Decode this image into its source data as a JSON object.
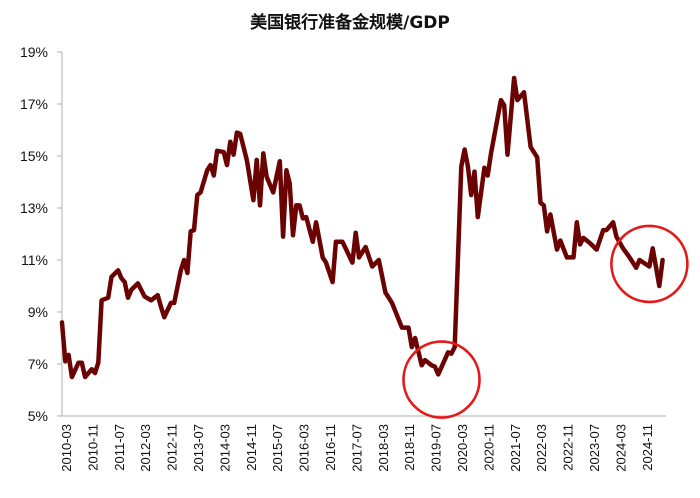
{
  "chart_data": {
    "type": "line",
    "title": "美国银行准备金规模/GDP",
    "xlabel": "",
    "ylabel": "",
    "ylim": [
      5,
      19
    ],
    "y_ticks": [
      "5%",
      "7%",
      "9%",
      "11%",
      "13%",
      "15%",
      "17%",
      "19%"
    ],
    "y_tick_values": [
      5,
      7,
      9,
      11,
      13,
      15,
      17,
      19
    ],
    "x_ticks": [
      "2010-03",
      "2010-11",
      "2011-07",
      "2012-03",
      "2012-11",
      "2013-07",
      "2014-03",
      "2014-11",
      "2015-07",
      "2016-03",
      "2016-11",
      "2017-07",
      "2018-03",
      "2018-11",
      "2019-07",
      "2020-03",
      "2020-11",
      "2021-07",
      "2022-03",
      "2022-11",
      "2023-07",
      "2024-03",
      "2024-11"
    ],
    "grid": false,
    "legend": "none",
    "line_color": "#6b0303",
    "highlight_color": "#e41a1a",
    "highlights": [
      {
        "center_date": "2019-10",
        "center_value": 6.4
      },
      {
        "center_date": "2025-01",
        "center_value": 10.85
      }
    ],
    "series": [
      {
        "x": [
          "2010-03",
          "2010-04",
          "2010-05",
          "2010-06",
          "2010-08",
          "2010-09",
          "2010-10",
          "2010-12",
          "2011-01",
          "2011-02",
          "2011-03",
          "2011-05",
          "2011-06",
          "2011-08",
          "2011-09",
          "2011-10",
          "2011-11",
          "2011-12",
          "2012-02",
          "2012-04",
          "2012-06",
          "2012-08",
          "2012-09",
          "2012-10",
          "2012-12",
          "2013-01",
          "2013-03",
          "2013-04",
          "2013-05",
          "2013-06",
          "2013-07",
          "2013-08",
          "2013-09",
          "2013-11",
          "2013-12",
          "2014-01",
          "2014-02",
          "2014-04",
          "2014-05",
          "2014-06",
          "2014-07",
          "2014-08",
          "2014-09",
          "2014-11",
          "2015-01",
          "2015-02",
          "2015-03",
          "2015-04",
          "2015-05",
          "2015-07",
          "2015-09",
          "2015-10",
          "2015-11",
          "2015-12",
          "2016-01",
          "2016-02",
          "2016-03",
          "2016-04",
          "2016-05",
          "2016-07",
          "2016-08",
          "2016-10",
          "2016-11",
          "2017-01",
          "2017-02",
          "2017-04",
          "2017-07",
          "2017-08",
          "2017-09",
          "2017-11",
          "2018-01",
          "2018-03",
          "2018-05",
          "2018-06",
          "2018-07",
          "2018-10",
          "2018-12",
          "2019-01",
          "2019-02",
          "2019-04",
          "2019-05",
          "2019-07",
          "2019-08",
          "2019-09",
          "2019-12",
          "2020-01",
          "2020-02",
          "2020-04",
          "2020-05",
          "2020-06",
          "2020-07",
          "2020-08",
          "2020-09",
          "2020-11",
          "2020-12",
          "2021-01",
          "2021-04",
          "2021-05",
          "2021-06",
          "2021-08",
          "2021-09",
          "2021-11",
          "2022-01",
          "2022-03",
          "2022-04",
          "2022-05",
          "2022-06",
          "2022-07",
          "2022-09",
          "2022-10",
          "2022-12",
          "2023-02",
          "2023-03",
          "2023-04",
          "2023-05",
          "2023-07",
          "2023-09",
          "2023-11",
          "2023-12",
          "2024-02",
          "2024-03",
          "2024-05",
          "2024-07",
          "2024-09",
          "2024-10",
          "2025-01",
          "2025-02",
          "2025-04",
          "2025-05"
        ],
        "y": [
          8.6,
          7.1,
          7.35,
          6.5,
          7.05,
          7.05,
          6.5,
          6.8,
          6.65,
          7.05,
          9.45,
          9.55,
          10.35,
          10.6,
          10.3,
          10.15,
          9.55,
          9.85,
          10.1,
          9.6,
          9.45,
          9.65,
          9.2,
          8.8,
          9.35,
          9.35,
          10.6,
          11.0,
          10.5,
          12.1,
          12.15,
          13.5,
          13.6,
          14.45,
          14.65,
          14.25,
          15.2,
          15.15,
          14.65,
          15.55,
          15.05,
          15.9,
          15.85,
          14.85,
          13.3,
          14.85,
          13.1,
          15.1,
          14.2,
          13.6,
          14.8,
          11.9,
          14.45,
          13.95,
          11.95,
          13.1,
          13.1,
          12.6,
          12.65,
          11.7,
          12.45,
          11.1,
          10.9,
          10.15,
          11.7,
          11.7,
          10.9,
          12.05,
          11.1,
          11.5,
          10.75,
          11.0,
          9.75,
          9.55,
          9.35,
          8.4,
          8.4,
          7.65,
          8.0,
          6.95,
          7.15,
          6.95,
          6.9,
          6.6,
          7.45,
          7.4,
          7.65,
          14.6,
          15.25,
          14.6,
          13.5,
          14.4,
          12.65,
          14.55,
          14.25,
          15.1,
          17.15,
          16.95,
          15.05,
          18.0,
          17.15,
          17.45,
          15.35,
          14.95,
          13.2,
          13.1,
          12.1,
          12.75,
          11.4,
          11.75,
          11.1,
          11.1,
          12.45,
          11.6,
          11.85,
          11.65,
          11.4,
          12.15,
          12.15,
          12.45,
          11.9,
          11.45,
          11.1,
          10.7,
          11.0,
          10.75,
          11.45,
          10.0,
          11.0
        ]
      }
    ]
  }
}
